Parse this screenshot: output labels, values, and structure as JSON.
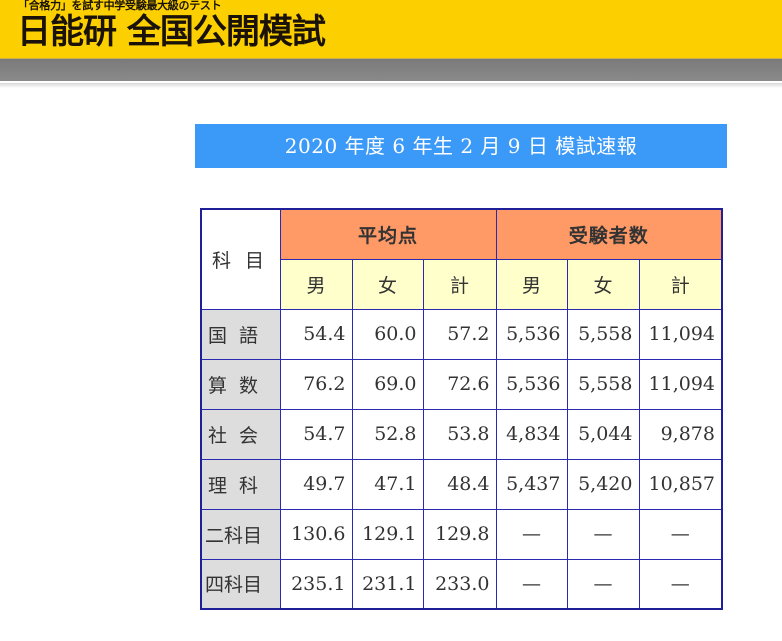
{
  "header": {
    "tagline": "「合格力」を試す中学受験最大級のテスト",
    "brand": "日能研 全国公開模試",
    "colors": {
      "brand_yellow": "#fcd000",
      "nav_gray": "#828282"
    }
  },
  "title": "2020 年度 6 年生 2 月 9 日 模試速報",
  "table": {
    "subject_header": "科 目",
    "groups": [
      {
        "label": "平均点",
        "columns": [
          "男",
          "女",
          "計"
        ]
      },
      {
        "label": "受験者数",
        "columns": [
          "男",
          "女",
          "計"
        ]
      }
    ],
    "rows": [
      {
        "subject": "国 語",
        "avg_male": "54.4",
        "avg_female": "60.0",
        "avg_total": "57.2",
        "n_male": "5,536",
        "n_female": "5,558",
        "n_total": "11,094"
      },
      {
        "subject": "算 数",
        "avg_male": "76.2",
        "avg_female": "69.0",
        "avg_total": "72.6",
        "n_male": "5,536",
        "n_female": "5,558",
        "n_total": "11,094"
      },
      {
        "subject": "社 会",
        "avg_male": "54.7",
        "avg_female": "52.8",
        "avg_total": "53.8",
        "n_male": "4,834",
        "n_female": "5,044",
        "n_total": "9,878"
      },
      {
        "subject": "理 科",
        "avg_male": "49.7",
        "avg_female": "47.1",
        "avg_total": "48.4",
        "n_male": "5,437",
        "n_female": "5,420",
        "n_total": "10,857"
      },
      {
        "subject": "二科目",
        "avg_male": "130.6",
        "avg_female": "129.1",
        "avg_total": "129.8",
        "n_male": "—",
        "n_female": "—",
        "n_total": "—"
      },
      {
        "subject": "四科目",
        "avg_male": "235.1",
        "avg_female": "231.1",
        "avg_total": "233.0",
        "n_male": "—",
        "n_female": "—",
        "n_total": "—"
      }
    ],
    "colors": {
      "border": "#2a2ab0",
      "group_header_bg": "#ff9966",
      "sub_header_bg": "#ffffcc",
      "subject_bg": "#dddddd",
      "title_bar_bg": "#3b99f8"
    }
  }
}
